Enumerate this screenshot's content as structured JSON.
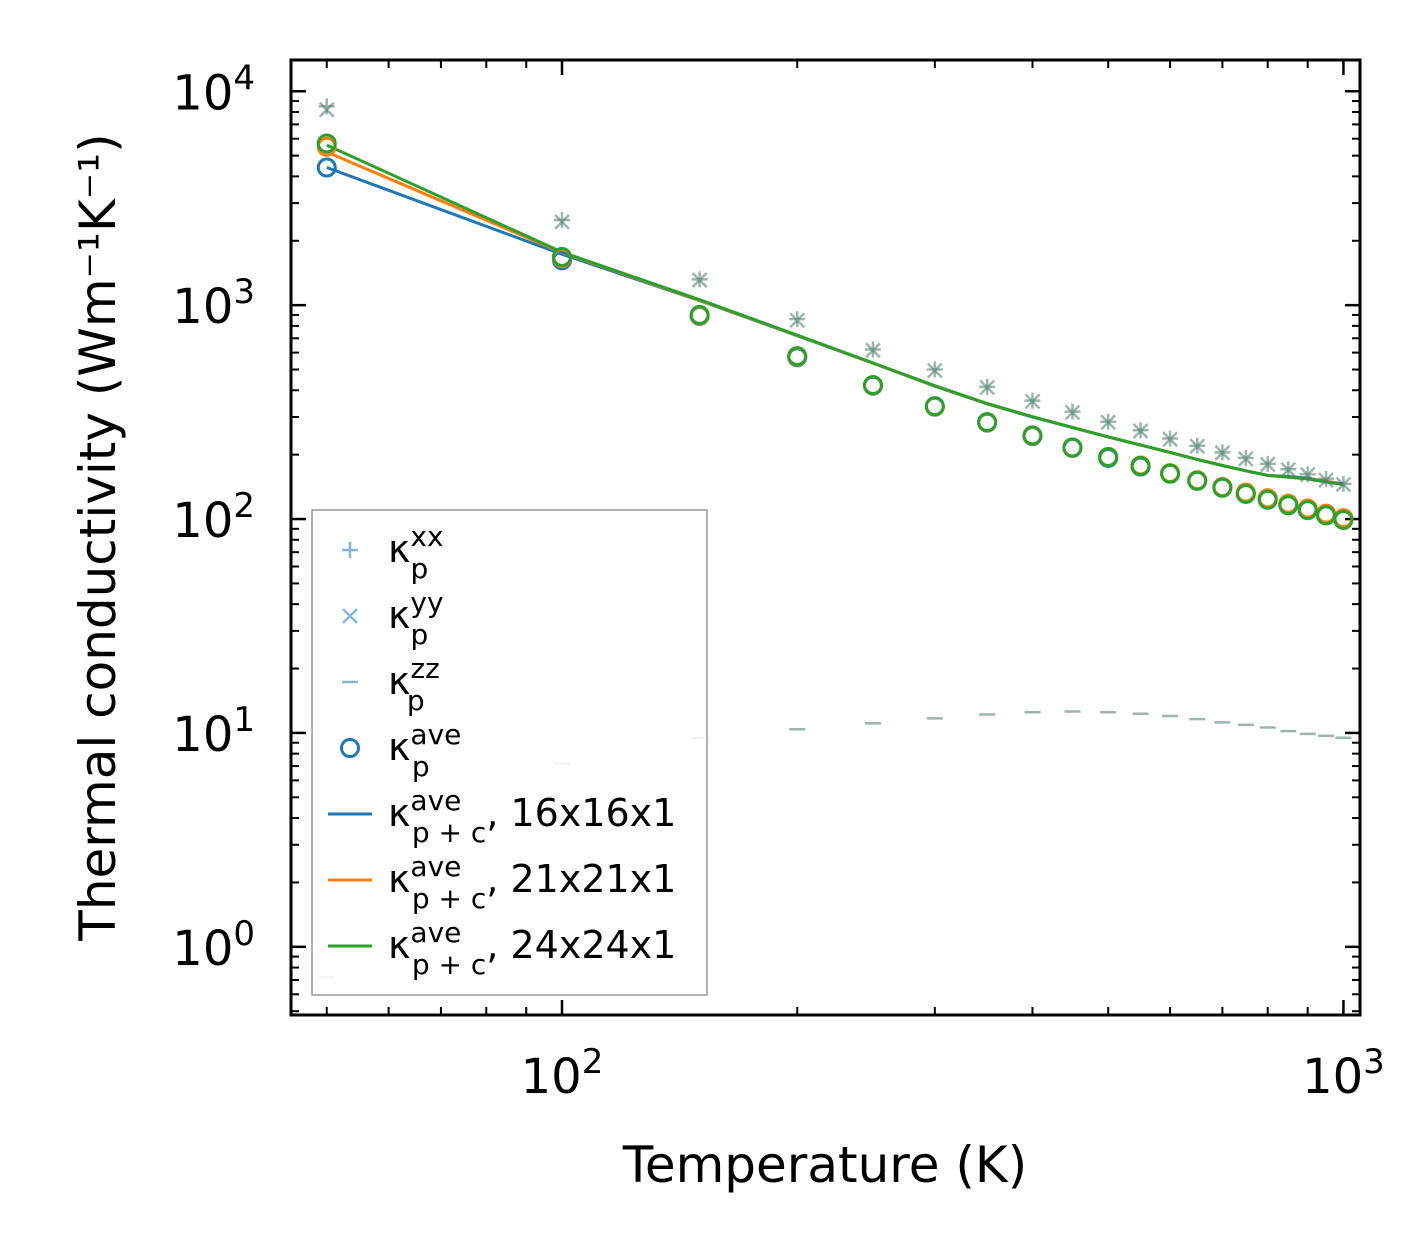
{
  "chart_data": {
    "type": "scatter",
    "xscale": "log",
    "yscale": "log",
    "xlim": [
      45,
      1050
    ],
    "ylim": [
      0.48,
      14000
    ],
    "xlabel": "Temperature (K)",
    "ylabel": "Thermal conductivity (Wm⁻¹K⁻¹)",
    "xticks": [
      {
        "value": 100,
        "base": "10",
        "exp": "2"
      },
      {
        "value": 1000,
        "base": "10",
        "exp": "3"
      }
    ],
    "yticks": [
      {
        "value": 1,
        "base": "10",
        "exp": "0"
      },
      {
        "value": 10,
        "base": "10",
        "exp": "1"
      },
      {
        "value": 100,
        "base": "10",
        "exp": "2"
      },
      {
        "value": 1000,
        "base": "10",
        "exp": "3"
      },
      {
        "value": 10000,
        "base": "10",
        "exp": "4"
      }
    ],
    "x": [
      50,
      100,
      150,
      200,
      250,
      300,
      350,
      400,
      450,
      500,
      550,
      600,
      650,
      700,
      750,
      800,
      850,
      900,
      950,
      1000
    ],
    "series": [
      {
        "name": "kp_xx",
        "kind": "marker",
        "marker": "plus",
        "color": "#4a7a66",
        "opacity": 0.55,
        "values": [
          8500,
          2500,
          1320,
          860,
          620,
          500,
          415,
          358,
          318,
          285,
          260,
          238,
          220,
          205,
          193,
          181,
          171,
          162,
          154,
          146
        ]
      },
      {
        "name": "kp_yy",
        "kind": "marker",
        "marker": "x",
        "color": "#4a7a66",
        "opacity": 0.55,
        "values": [
          8200,
          2450,
          1310,
          850,
          615,
          495,
          412,
          355,
          315,
          283,
          258,
          236,
          219,
          204,
          191,
          180,
          170,
          161,
          152,
          145
        ]
      },
      {
        "name": "kp_zz",
        "kind": "marker",
        "marker": "dash",
        "color": "#4a7a66",
        "opacity": 0.55,
        "values": [
          0.72,
          7.2,
          9.5,
          10.4,
          11.1,
          11.7,
          12.2,
          12.5,
          12.6,
          12.5,
          12.3,
          12.0,
          11.6,
          11.2,
          10.9,
          10.6,
          10.2,
          9.9,
          9.7,
          9.5
        ]
      },
      {
        "name": "kp_ave 16x16x1",
        "kind": "circle",
        "color": "#1f77b4",
        "values": [
          4400,
          1620,
          890,
          570,
          420,
          335,
          282,
          244,
          215,
          193,
          176,
          163,
          151,
          141,
          132,
          124,
          117,
          111,
          105,
          100
        ]
      },
      {
        "name": "kp_ave 21x21x1",
        "kind": "circle",
        "color": "#ff7f0e",
        "values": [
          5500,
          1660,
          895,
          575,
          422,
          336,
          283,
          245,
          216,
          195,
          178,
          164,
          152,
          141,
          133,
          125,
          118,
          112,
          106,
          101
        ]
      },
      {
        "name": "kp_ave 24x24x1",
        "kind": "circle",
        "color": "#2ca02c",
        "values": [
          5700,
          1680,
          900,
          578,
          423,
          337,
          284,
          246,
          216,
          195,
          177,
          163,
          151,
          140,
          131,
          123,
          116,
          110,
          104,
          99
        ]
      },
      {
        "name": "kpc_ave 16x16x1",
        "kind": "line",
        "color": "#1f77b4",
        "values": [
          4400,
          1730,
          1050,
          720,
          535,
          418,
          345,
          300,
          268,
          242,
          222,
          205,
          190,
          178,
          168,
          160,
          158,
          155,
          150,
          146
        ]
      },
      {
        "name": "kpc_ave 21x21x1",
        "kind": "line",
        "color": "#ff7f0e",
        "values": [
          5200,
          1760,
          1055,
          722,
          536,
          419,
          346,
          301,
          268,
          242,
          222,
          205,
          190,
          178,
          168,
          160,
          157,
          154,
          150,
          145
        ]
      },
      {
        "name": "kpc_ave 24x24x1",
        "kind": "line",
        "color": "#2ca02c",
        "values": [
          5600,
          1770,
          1060,
          724,
          537,
          420,
          347,
          301,
          268,
          242,
          222,
          205,
          190,
          178,
          168,
          160,
          157,
          154,
          149,
          145
        ]
      }
    ],
    "legend": {
      "position": "lower-left",
      "entries": [
        {
          "symbol": "plus",
          "color": "#1f77b4",
          "kappa": "κ",
          "sub": "p",
          "sup": "xx",
          "suffix": ""
        },
        {
          "symbol": "x",
          "color": "#1f77b4",
          "kappa": "κ",
          "sub": "p",
          "sup": "yy",
          "suffix": ""
        },
        {
          "symbol": "dash",
          "color": "#1f77b4",
          "kappa": "κ",
          "sub": "p",
          "sup": "zz",
          "suffix": ""
        },
        {
          "symbol": "circle",
          "color": "#1f77b4",
          "kappa": "κ",
          "sub": "p",
          "sup": "ave",
          "suffix": ""
        },
        {
          "symbol": "line",
          "color": "#1f77b4",
          "kappa": "κ",
          "sub": "p + c",
          "sup": "ave",
          "suffix": ", 16x16x1"
        },
        {
          "symbol": "line",
          "color": "#ff7f0e",
          "kappa": "κ",
          "sub": "p + c",
          "sup": "ave",
          "suffix": ", 21x21x1"
        },
        {
          "symbol": "line",
          "color": "#2ca02c",
          "kappa": "κ",
          "sub": "p + c",
          "sup": "ave",
          "suffix": ", 24x24x1"
        }
      ]
    }
  }
}
